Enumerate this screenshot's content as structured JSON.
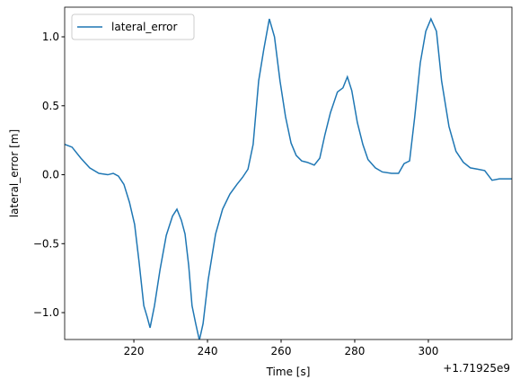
{
  "chart_data": {
    "type": "line",
    "xlabel": "Time [s]",
    "ylabel": "lateral_error [m]",
    "x_offset_label": "+1.71925e9",
    "x": [
      201.2,
      203.2,
      205.6,
      208.0,
      210.5,
      212.9,
      214.4,
      215.8,
      217.3,
      218.8,
      220.2,
      221.4,
      222.7,
      223.6,
      224.4,
      225.6,
      227.1,
      228.8,
      230.5,
      231.7,
      232.9,
      233.9,
      234.9,
      235.8,
      236.8,
      237.8,
      238.8,
      240.2,
      242.2,
      244.1,
      246.1,
      248.0,
      249.5,
      251.0,
      252.4,
      253.9,
      255.3,
      256.8,
      258.2,
      259.7,
      261.2,
      262.7,
      264.1,
      265.6,
      267.1,
      269.0,
      270.5,
      271.9,
      273.4,
      275.3,
      276.8,
      278.0,
      279.2,
      280.7,
      282.2,
      283.6,
      285.6,
      287.5,
      290.0,
      291.9,
      293.4,
      294.9,
      296.3,
      297.8,
      299.3,
      300.7,
      302.2,
      303.6,
      305.6,
      307.5,
      309.5,
      311.4,
      313.4,
      315.3,
      317.3,
      319.3,
      322.7
    ],
    "series": [
      {
        "name": "lateral_error",
        "color": "#1f77b4",
        "values": [
          0.22,
          0.2,
          0.12,
          0.05,
          0.01,
          0.0,
          0.01,
          -0.01,
          -0.07,
          -0.2,
          -0.36,
          -0.63,
          -0.95,
          -1.03,
          -1.11,
          -0.95,
          -0.69,
          -0.44,
          -0.3,
          -0.25,
          -0.33,
          -0.43,
          -0.66,
          -0.95,
          -1.08,
          -1.2,
          -1.08,
          -0.76,
          -0.43,
          -0.25,
          -0.14,
          -0.07,
          -0.02,
          0.04,
          0.22,
          0.68,
          0.91,
          1.13,
          1.0,
          0.68,
          0.42,
          0.23,
          0.14,
          0.1,
          0.09,
          0.07,
          0.12,
          0.29,
          0.45,
          0.6,
          0.63,
          0.71,
          0.61,
          0.38,
          0.22,
          0.11,
          0.05,
          0.02,
          0.01,
          0.01,
          0.08,
          0.1,
          0.42,
          0.81,
          1.04,
          1.13,
          1.04,
          0.68,
          0.35,
          0.17,
          0.09,
          0.05,
          0.04,
          0.03,
          -0.04,
          -0.03,
          -0.03
        ]
      }
    ],
    "xlim": [
      201.2,
      322.7
    ],
    "ylim": [
      -1.195,
      1.215
    ],
    "xticks": [
      220,
      240,
      260,
      280,
      300
    ],
    "yticks": [
      {
        "value": -1.0,
        "label": "−1.0"
      },
      {
        "value": -0.5,
        "label": "−0.5"
      },
      {
        "value": 0.0,
        "label": "0.0"
      },
      {
        "value": 0.5,
        "label": "0.5"
      },
      {
        "value": 1.0,
        "label": "1.0"
      }
    ],
    "legend": "upper left"
  }
}
